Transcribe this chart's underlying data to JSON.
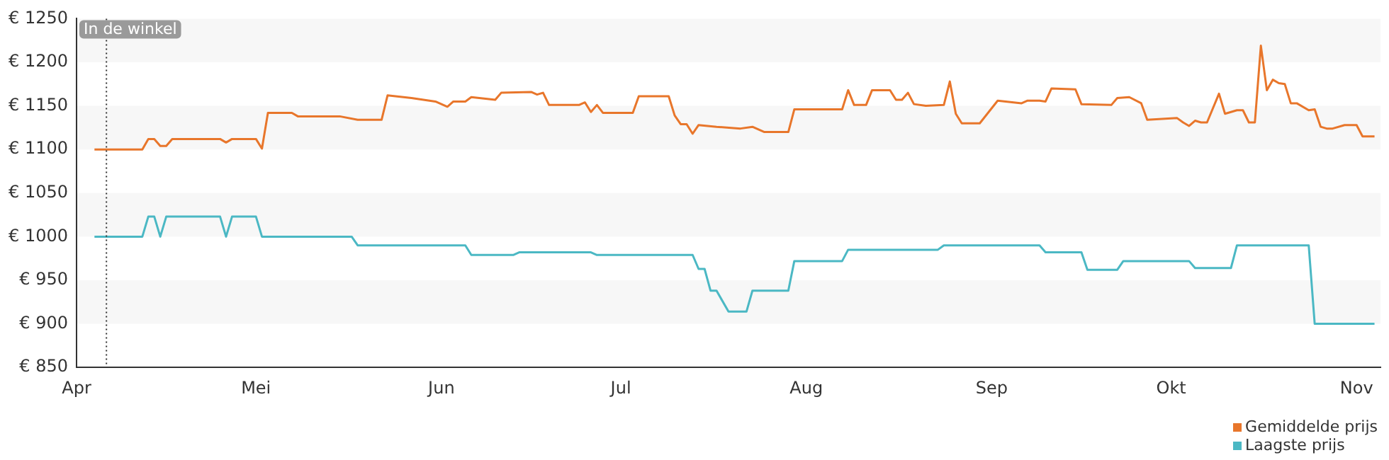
{
  "chart_data": {
    "type": "line",
    "xlim": [
      "--04-01",
      "--11-05"
    ],
    "xticks": [
      {
        "value": "--04-01",
        "label": "Apr"
      },
      {
        "value": "--05-01",
        "label": "Mei"
      },
      {
        "value": "--06-01",
        "label": "Jun"
      },
      {
        "value": "--07-01",
        "label": "Jul"
      },
      {
        "value": "--08-01",
        "label": "Aug"
      },
      {
        "value": "--09-01",
        "label": "Sep"
      },
      {
        "value": "--10-01",
        "label": "Okt"
      },
      {
        "value": "--11-01",
        "label": "Nov"
      }
    ],
    "ylim": [
      850,
      1250
    ],
    "yticks": [
      {
        "value": 850,
        "label": "€ 850"
      },
      {
        "value": 900,
        "label": "€ 900"
      },
      {
        "value": 950,
        "label": "€ 950"
      },
      {
        "value": 1000,
        "label": "€ 1000"
      },
      {
        "value": 1050,
        "label": "€ 1050"
      },
      {
        "value": 1100,
        "label": "€ 1100"
      },
      {
        "value": 1150,
        "label": "€ 1150"
      },
      {
        "value": 1200,
        "label": "€ 1200"
      },
      {
        "value": 1250,
        "label": "€ 1250"
      }
    ],
    "bands": [
      {
        "axis": "y",
        "from": 900,
        "to": 950,
        "color": "#f7f7f7"
      },
      {
        "axis": "y",
        "from": 1000,
        "to": 1050,
        "color": "#f7f7f7"
      },
      {
        "axis": "y",
        "from": 1100,
        "to": 1150,
        "color": "#f7f7f7"
      },
      {
        "axis": "y",
        "from": 1200,
        "to": 1250,
        "color": "#f7f7f7"
      }
    ],
    "legend": "bottom right",
    "marker": "none",
    "line_style": "solid",
    "ref_lines": [
      {
        "axis": "x",
        "value": "--04-06",
        "label": "In de winkel",
        "line_style": "dotted",
        "color": "#333333"
      }
    ],
    "series": [
      {
        "name": "Gemiddelde prijs",
        "color": "#e8762b",
        "x": [
          "--04-04",
          "--04-12",
          "--04-13",
          "--04-14",
          "--04-15",
          "--04-16",
          "--04-17",
          "--04-25",
          "--04-26",
          "--04-27",
          "--05-01",
          "--05-02",
          "--05-03",
          "--05-07",
          "--05-08",
          "--05-15",
          "--05-18",
          "--05-22",
          "--05-23",
          "--05-27",
          "--05-31",
          "--06-02",
          "--06-03",
          "--06-05",
          "--06-06",
          "--06-10",
          "--06-11",
          "--06-16",
          "--06-17",
          "--06-18",
          "--06-19",
          "--06-24",
          "--06-25",
          "--06-26",
          "--06-27",
          "--06-28",
          "--07-03",
          "--07-04",
          "--07-09",
          "--07-10",
          "--07-11",
          "--07-12",
          "--07-13",
          "--07-14",
          "--07-17",
          "--07-21",
          "--07-23",
          "--07-25",
          "--07-29",
          "--07-30",
          "--08-07",
          "--08-08",
          "--08-09",
          "--08-11",
          "--08-12",
          "--08-15",
          "--08-16",
          "--08-17",
          "--08-18",
          "--08-19",
          "--08-21",
          "--08-24",
          "--08-25",
          "--08-26",
          "--08-27",
          "--08-30",
          "--09-02",
          "--09-06",
          "--09-07",
          "--09-09",
          "--09-10",
          "--09-11",
          "--09-15",
          "--09-16",
          "--09-21",
          "--09-22",
          "--09-24",
          "--09-26",
          "--09-27",
          "--10-02",
          "--10-03",
          "--10-04",
          "--10-05",
          "--10-06",
          "--10-07",
          "--10-09",
          "--10-10",
          "--10-12",
          "--10-13",
          "--10-14",
          "--10-15",
          "--10-16",
          "--10-17",
          "--10-18",
          "--10-19",
          "--10-20",
          "--10-21",
          "--10-22",
          "--10-24",
          "--10-25",
          "--10-26",
          "--10-27",
          "--10-28",
          "--10-30",
          "--11-01",
          "--11-02",
          "--11-04"
        ],
        "values": [
          1100,
          1100,
          1112,
          1112,
          1104,
          1104,
          1112,
          1112,
          1108,
          1112,
          1112,
          1101,
          1142,
          1142,
          1138,
          1138,
          1134,
          1134,
          1162,
          1159,
          1155,
          1149,
          1155,
          1155,
          1160,
          1157,
          1165,
          1166,
          1163,
          1165,
          1151,
          1151,
          1154,
          1143,
          1151,
          1142,
          1142,
          1161,
          1161,
          1139,
          1129,
          1129,
          1118,
          1128,
          1126,
          1124,
          1126,
          1120,
          1120,
          1146,
          1146,
          1168,
          1151,
          1151,
          1168,
          1168,
          1157,
          1157,
          1165,
          1152,
          1150,
          1151,
          1178,
          1141,
          1130,
          1130,
          1156,
          1153,
          1156,
          1156,
          1155,
          1170,
          1169,
          1152,
          1151,
          1159,
          1160,
          1153,
          1134,
          1136,
          1131,
          1127,
          1133,
          1131,
          1131,
          1164,
          1141,
          1145,
          1145,
          1131,
          1131,
          1219,
          1168,
          1180,
          1176,
          1175,
          1153,
          1153,
          1145,
          1146,
          1126,
          1124,
          1124,
          1128,
          1128,
          1115,
          1115
        ]
      },
      {
        "name": "Laagste prijs",
        "color": "#4bb8c4",
        "x": [
          "--04-04",
          "--04-12",
          "--04-13",
          "--04-14",
          "--04-15",
          "--04-16",
          "--04-25",
          "--04-26",
          "--04-27",
          "--05-01",
          "--05-02",
          "--05-17",
          "--05-18",
          "--06-05",
          "--06-06",
          "--06-13",
          "--06-14",
          "--06-26",
          "--06-27",
          "--07-13",
          "--07-14",
          "--07-15",
          "--07-16",
          "--07-17",
          "--07-19",
          "--07-22",
          "--07-23",
          "--07-29",
          "--07-30",
          "--08-07",
          "--08-08",
          "--08-23",
          "--08-24",
          "--09-09",
          "--09-10",
          "--09-16",
          "--09-17",
          "--09-22",
          "--09-23",
          "--10-04",
          "--10-05",
          "--10-11",
          "--10-12",
          "--10-24",
          "--10-25",
          "--11-04"
        ],
        "values": [
          1000,
          1000,
          1023,
          1023,
          1000,
          1023,
          1023,
          1000,
          1023,
          1023,
          1000,
          1000,
          990,
          990,
          979,
          979,
          982,
          982,
          979,
          979,
          963,
          963,
          938,
          938,
          914,
          914,
          938,
          938,
          972,
          972,
          985,
          985,
          990,
          990,
          982,
          982,
          962,
          962,
          972,
          972,
          964,
          964,
          990,
          990,
          900,
          900
        ]
      }
    ]
  }
}
